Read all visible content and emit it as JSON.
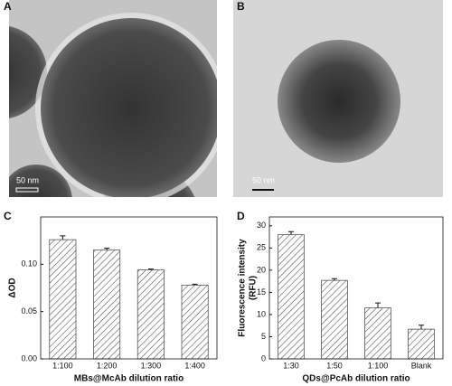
{
  "images": [
    {
      "label": "A",
      "scale_bar": "50 nm"
    },
    {
      "label": "B",
      "scale_bar": "50 nm"
    }
  ],
  "chart_data": [
    {
      "type": "bar",
      "panel_label": "C",
      "y_label": [
        "ΔOD"
      ],
      "x_label": "MBs@McAb dilution ratio",
      "categories": [
        "1:100",
        "1:200",
        "1:300",
        "1:400"
      ],
      "values": [
        0.126,
        0.115,
        0.094,
        0.078
      ],
      "errors": [
        0.004,
        0.002,
        0.001,
        0.001
      ],
      "color": "#555555",
      "ylim": [
        0,
        0.15
      ],
      "yticks": [
        {
          "value": 0,
          "label": "0.00"
        },
        0.05,
        {
          "value": 0.1,
          "label": "0.10"
        }
      ]
    },
    {
      "type": "bar",
      "panel_label": "D",
      "y_label": [
        "Fluorescence intensity",
        "(RFU)"
      ],
      "x_label": "QDs@PcAb dilution ratio",
      "categories": [
        "1:30",
        "1:50",
        "1:100",
        "Blank"
      ],
      "values": [
        28,
        17.7,
        11.5,
        6.7
      ],
      "errors": [
        0.7,
        0.4,
        1.1,
        0.9
      ],
      "color": "#555555",
      "ylim": [
        0,
        32
      ],
      "yticks": [
        0,
        5,
        10,
        15,
        20,
        25,
        30
      ]
    }
  ]
}
